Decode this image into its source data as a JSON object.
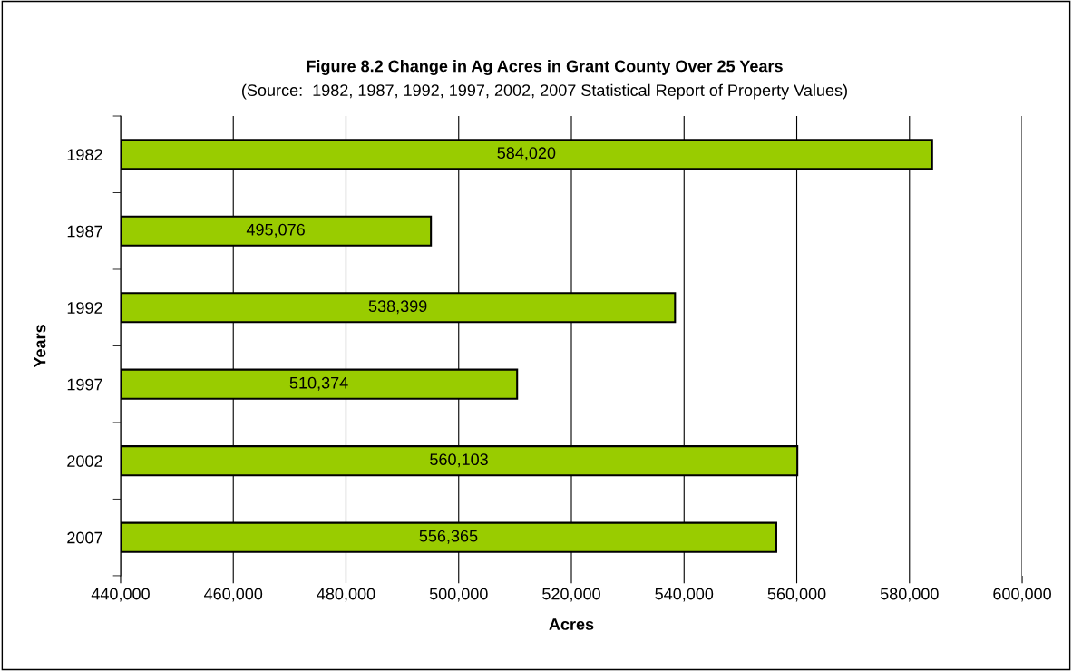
{
  "chart_data": {
    "type": "bar",
    "orientation": "horizontal",
    "title": "Figure 8.2 Change in Ag Acres in Grant County Over 25 Years",
    "subtitle": "(Source:  1982, 1987, 1992, 1997, 2002, 2007 Statistical Report of Property Values)",
    "xlabel": "Acres",
    "ylabel": "Years",
    "categories": [
      "1982",
      "1987",
      "1992",
      "1997",
      "2002",
      "2007"
    ],
    "values": [
      584020,
      495076,
      538399,
      510374,
      560103,
      556365
    ],
    "value_labels": [
      "584,020",
      "495,076",
      "538,399",
      "510,374",
      "560,103",
      "556,365"
    ],
    "color": "#99cc00",
    "xlim": [
      440000,
      600000
    ],
    "xticks": [
      {
        "value": 440000,
        "label": "440,000"
      },
      {
        "value": 460000,
        "label": "460,000"
      },
      {
        "value": 480000,
        "label": "480,000"
      },
      {
        "value": 500000,
        "label": "500,000"
      },
      {
        "value": 520000,
        "label": "520,000"
      },
      {
        "value": 540000,
        "label": "540,000"
      },
      {
        "value": 560000,
        "label": "560,000"
      },
      {
        "value": 580000,
        "label": "580,000"
      },
      {
        "value": 600000,
        "label": "600,000"
      }
    ],
    "grid": "x"
  }
}
